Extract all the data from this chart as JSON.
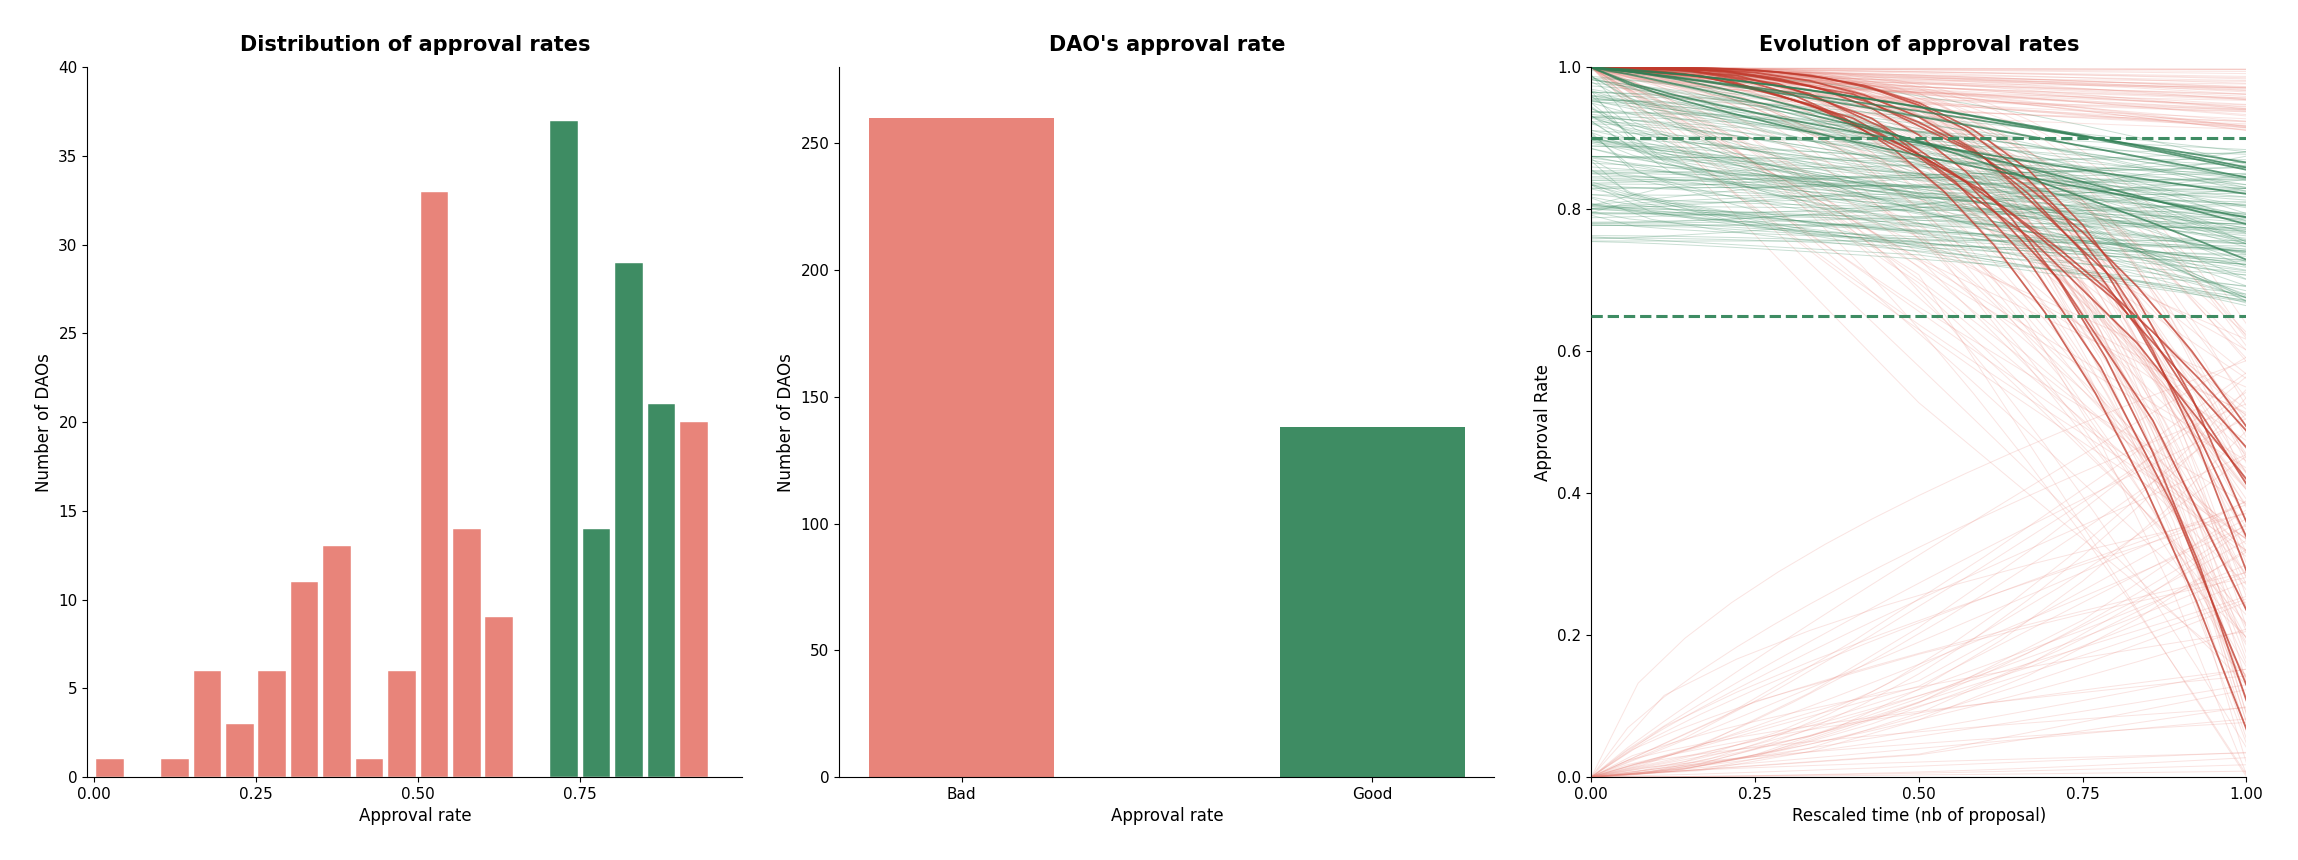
{
  "title1": "Distribution of approval rates",
  "title2": "DAO's approval rate",
  "title3": "Evolution of approval rates",
  "xlabel1": "Approval rate",
  "ylabel1": "Number of DAOs",
  "xlabel2": "Approval rate",
  "ylabel2": "Number of DAOs",
  "xlabel3": "Rescaled time (nb of proposal)",
  "ylabel3": "Approval Rate",
  "color_red": "#E8847A",
  "color_green": "#3E8C63",
  "color_red_dark": "#C0392B",
  "color_green_dark": "#2E7D52",
  "bar2_bad": 260,
  "bar2_good": 138,
  "dashed_line_lower": 0.65,
  "dashed_line_upper": 0.9,
  "hist_bin_edges": [
    0.0,
    0.05,
    0.1,
    0.15,
    0.2,
    0.25,
    0.3,
    0.35,
    0.4,
    0.45,
    0.5,
    0.55,
    0.6,
    0.65,
    0.7,
    0.75,
    0.8,
    0.85,
    0.9,
    0.95,
    1.0
  ],
  "hist_values": [
    1,
    0,
    1,
    6,
    3,
    6,
    11,
    13,
    1,
    6,
    33,
    14,
    9,
    0,
    37,
    14,
    29,
    21,
    20,
    0
  ],
  "hist_colors": [
    "red",
    "red",
    "red",
    "red",
    "red",
    "red",
    "red",
    "red",
    "red",
    "red",
    "red",
    "red",
    "red",
    "red",
    "green",
    "green",
    "green",
    "green",
    "red",
    "red"
  ],
  "title_fontsize": 15,
  "axis_fontsize": 12,
  "tick_fontsize": 11
}
